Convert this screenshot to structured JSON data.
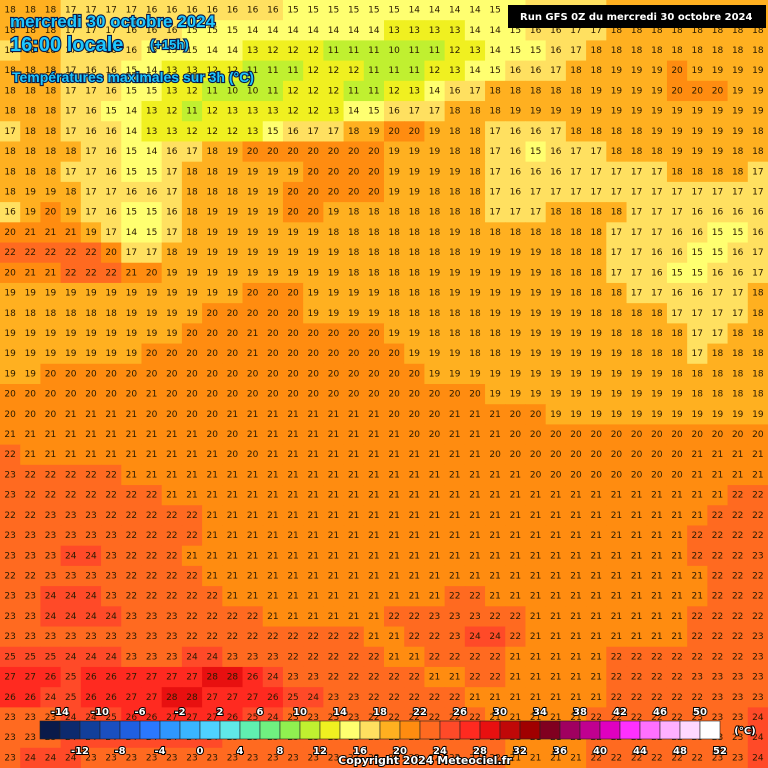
{
  "header": {
    "date": "mercredi 30 octobre 2024",
    "time": "16:00 locale",
    "offset": "(+15h)",
    "subtitle": "Températures maximales sur 3h (°C)",
    "run": "Run GFS 0Z du mercredi 30 octobre 2024"
  },
  "legend": {
    "unit": "(°C)",
    "ticks": [
      -14,
      -12,
      -10,
      -8,
      -6,
      -4,
      -2,
      0,
      2,
      4,
      6,
      8,
      10,
      12,
      14,
      16,
      18,
      20,
      22,
      24,
      26,
      28,
      30,
      32,
      34,
      36,
      38,
      40,
      42,
      44,
      46,
      48,
      50,
      52
    ],
    "colors": [
      "#0a1a4a",
      "#0d2a6e",
      "#123f9a",
      "#1a4fc0",
      "#1f5fe0",
      "#2a78ff",
      "#2f97ff",
      "#3ab5ff",
      "#4fd2ff",
      "#60e8e8",
      "#60f0b0",
      "#70f080",
      "#90f050",
      "#c0f030",
      "#f0f020",
      "#ffff70",
      "#ffe060",
      "#ffb020",
      "#ff8c10",
      "#ff6a20",
      "#ff4a28",
      "#ff2a20",
      "#e81010",
      "#c00808",
      "#a00000",
      "#800020",
      "#a00060",
      "#c00090",
      "#e000c0",
      "#ff30ff",
      "#ff70ff",
      "#ffb0ff",
      "#ffd8ff",
      "#ffffff"
    ]
  },
  "footer": {
    "copyright": "Copyright 2024 Meteociel.fr"
  },
  "grid": [
    [
      18,
      18,
      18,
      17,
      17,
      17,
      17,
      16,
      16,
      16,
      16,
      16,
      16,
      16,
      15,
      15,
      15,
      15,
      15,
      15,
      14,
      14,
      14,
      14,
      15,
      15,
      16,
      16,
      17,
      17,
      18,
      18,
      18,
      18,
      18,
      18,
      18,
      18
    ],
    [
      18,
      18,
      18,
      17,
      17,
      17,
      16,
      16,
      16,
      15,
      15,
      15,
      14,
      14,
      14,
      14,
      14,
      14,
      14,
      13,
      13,
      13,
      13,
      14,
      14,
      15,
      16,
      16,
      17,
      17,
      18,
      18,
      18,
      18,
      18,
      18,
      18,
      18
    ],
    [
      17,
      18,
      18,
      17,
      17,
      16,
      16,
      15,
      15,
      15,
      14,
      14,
      13,
      12,
      12,
      12,
      11,
      11,
      11,
      10,
      11,
      11,
      12,
      13,
      14,
      15,
      15,
      16,
      17,
      18,
      18,
      18,
      18,
      18,
      18,
      18,
      18,
      18
    ],
    [
      18,
      18,
      18,
      17,
      16,
      16,
      15,
      14,
      13,
      13,
      12,
      12,
      11,
      11,
      11,
      12,
      12,
      12,
      11,
      11,
      11,
      12,
      13,
      14,
      15,
      16,
      16,
      17,
      18,
      18,
      19,
      19,
      19,
      20,
      19,
      19,
      19,
      19
    ],
    [
      18,
      18,
      18,
      17,
      17,
      16,
      15,
      15,
      13,
      12,
      11,
      10,
      10,
      11,
      12,
      12,
      12,
      11,
      11,
      12,
      13,
      14,
      16,
      17,
      18,
      18,
      18,
      18,
      18,
      19,
      19,
      19,
      19,
      20,
      20,
      20,
      19,
      19
    ],
    [
      18,
      18,
      18,
      17,
      16,
      15,
      14,
      13,
      12,
      11,
      12,
      13,
      13,
      13,
      12,
      12,
      13,
      14,
      15,
      16,
      17,
      17,
      18,
      18,
      18,
      19,
      19,
      19,
      19,
      19,
      19,
      19,
      19,
      19,
      19,
      19,
      19,
      19
    ],
    [
      17,
      18,
      18,
      17,
      16,
      16,
      14,
      13,
      13,
      12,
      12,
      12,
      13,
      15,
      16,
      17,
      17,
      18,
      19,
      20,
      20,
      19,
      18,
      18,
      17,
      16,
      16,
      17,
      18,
      18,
      18,
      18,
      19,
      19,
      19,
      19,
      19,
      18
    ],
    [
      18,
      18,
      18,
      18,
      17,
      16,
      15,
      14,
      16,
      17,
      18,
      19,
      20,
      20,
      20,
      20,
      20,
      20,
      20,
      19,
      19,
      19,
      18,
      18,
      17,
      16,
      15,
      16,
      17,
      17,
      18,
      18,
      18,
      19,
      19,
      19,
      18,
      18
    ],
    [
      18,
      18,
      18,
      17,
      17,
      16,
      15,
      15,
      17,
      18,
      18,
      19,
      19,
      19,
      19,
      20,
      20,
      20,
      20,
      19,
      19,
      19,
      19,
      18,
      17,
      16,
      16,
      16,
      17,
      17,
      17,
      17,
      17,
      18,
      18,
      18,
      18,
      17
    ],
    [
      18,
      19,
      19,
      18,
      17,
      17,
      16,
      16,
      17,
      18,
      18,
      18,
      19,
      19,
      20,
      20,
      20,
      20,
      20,
      19,
      19,
      18,
      18,
      18,
      17,
      16,
      17,
      17,
      17,
      17,
      17,
      17,
      17,
      17,
      17,
      17,
      17,
      17
    ],
    [
      16,
      19,
      20,
      19,
      17,
      16,
      15,
      15,
      16,
      18,
      19,
      19,
      19,
      19,
      20,
      20,
      19,
      18,
      18,
      18,
      18,
      18,
      18,
      18,
      17,
      17,
      17,
      18,
      18,
      18,
      18,
      17,
      17,
      17,
      16,
      16,
      16,
      16
    ],
    [
      20,
      21,
      21,
      21,
      19,
      17,
      14,
      15,
      17,
      18,
      19,
      19,
      19,
      19,
      19,
      19,
      18,
      18,
      18,
      18,
      18,
      18,
      19,
      18,
      18,
      18,
      18,
      18,
      18,
      18,
      17,
      17,
      17,
      16,
      16,
      15,
      15,
      16
    ],
    [
      22,
      22,
      22,
      22,
      22,
      20,
      17,
      17,
      18,
      19,
      19,
      19,
      19,
      19,
      19,
      19,
      19,
      18,
      18,
      18,
      18,
      18,
      18,
      19,
      19,
      19,
      19,
      18,
      18,
      18,
      17,
      17,
      16,
      16,
      15,
      15,
      16,
      17
    ],
    [
      20,
      21,
      21,
      22,
      22,
      22,
      21,
      20,
      19,
      19,
      19,
      19,
      19,
      19,
      19,
      19,
      19,
      18,
      18,
      18,
      18,
      19,
      19,
      19,
      19,
      19,
      19,
      18,
      18,
      18,
      17,
      17,
      16,
      15,
      15,
      16,
      16,
      17
    ],
    [
      19,
      19,
      19,
      19,
      19,
      19,
      19,
      19,
      19,
      19,
      19,
      19,
      20,
      20,
      20,
      19,
      19,
      19,
      19,
      18,
      18,
      18,
      19,
      19,
      19,
      19,
      19,
      19,
      18,
      18,
      18,
      17,
      17,
      16,
      16,
      17,
      17,
      18
    ],
    [
      18,
      18,
      18,
      18,
      18,
      18,
      19,
      19,
      19,
      19,
      20,
      20,
      20,
      20,
      20,
      19,
      19,
      19,
      19,
      18,
      18,
      18,
      18,
      18,
      19,
      19,
      19,
      19,
      19,
      18,
      18,
      18,
      18,
      17,
      17,
      17,
      17,
      18
    ],
    [
      19,
      19,
      19,
      19,
      19,
      19,
      19,
      19,
      19,
      20,
      20,
      20,
      21,
      20,
      20,
      20,
      20,
      20,
      20,
      19,
      19,
      18,
      18,
      18,
      18,
      19,
      19,
      19,
      19,
      19,
      18,
      18,
      18,
      18,
      17,
      17,
      18,
      18
    ],
    [
      19,
      19,
      19,
      19,
      19,
      19,
      19,
      20,
      20,
      20,
      20,
      20,
      21,
      20,
      20,
      20,
      20,
      20,
      20,
      20,
      19,
      19,
      19,
      18,
      18,
      19,
      19,
      19,
      19,
      19,
      19,
      18,
      18,
      18,
      17,
      18,
      18,
      18
    ],
    [
      19,
      19,
      20,
      20,
      20,
      20,
      20,
      20,
      20,
      20,
      20,
      20,
      20,
      20,
      20,
      20,
      20,
      20,
      20,
      20,
      20,
      19,
      19,
      19,
      19,
      19,
      19,
      19,
      19,
      19,
      19,
      19,
      19,
      18,
      18,
      18,
      18,
      18
    ],
    [
      20,
      20,
      20,
      20,
      20,
      20,
      20,
      21,
      20,
      20,
      20,
      20,
      20,
      20,
      20,
      20,
      20,
      20,
      20,
      20,
      20,
      20,
      20,
      20,
      19,
      19,
      19,
      19,
      19,
      19,
      19,
      19,
      19,
      19,
      18,
      18,
      18,
      18
    ],
    [
      20,
      20,
      20,
      21,
      21,
      21,
      21,
      20,
      20,
      20,
      20,
      21,
      21,
      21,
      21,
      21,
      21,
      21,
      21,
      20,
      20,
      20,
      21,
      21,
      21,
      20,
      20,
      19,
      19,
      19,
      19,
      19,
      19,
      19,
      19,
      19,
      19,
      19
    ],
    [
      21,
      21,
      21,
      21,
      21,
      21,
      21,
      21,
      21,
      21,
      20,
      20,
      21,
      21,
      21,
      21,
      21,
      21,
      21,
      21,
      20,
      20,
      21,
      21,
      21,
      20,
      20,
      20,
      20,
      20,
      20,
      20,
      20,
      20,
      20,
      20,
      20,
      20
    ],
    [
      22,
      21,
      21,
      21,
      21,
      21,
      21,
      21,
      21,
      21,
      21,
      20,
      20,
      21,
      21,
      21,
      21,
      21,
      21,
      21,
      21,
      21,
      21,
      21,
      20,
      20,
      20,
      20,
      20,
      20,
      20,
      20,
      20,
      20,
      21,
      21,
      21,
      21
    ],
    [
      23,
      22,
      22,
      22,
      22,
      22,
      21,
      21,
      21,
      21,
      21,
      21,
      21,
      21,
      21,
      21,
      21,
      21,
      21,
      21,
      21,
      21,
      21,
      21,
      21,
      21,
      20,
      20,
      20,
      20,
      20,
      20,
      20,
      20,
      21,
      21,
      21,
      21
    ],
    [
      23,
      22,
      22,
      22,
      22,
      22,
      22,
      22,
      21,
      21,
      21,
      21,
      21,
      21,
      21,
      21,
      21,
      21,
      21,
      21,
      21,
      21,
      21,
      21,
      21,
      21,
      21,
      21,
      21,
      21,
      21,
      21,
      21,
      21,
      21,
      21,
      22,
      22
    ],
    [
      22,
      22,
      23,
      23,
      23,
      22,
      22,
      22,
      22,
      22,
      21,
      21,
      21,
      21,
      21,
      21,
      21,
      21,
      21,
      21,
      21,
      21,
      21,
      21,
      21,
      21,
      21,
      21,
      21,
      21,
      21,
      21,
      21,
      21,
      21,
      22,
      22,
      22
    ],
    [
      23,
      23,
      23,
      23,
      23,
      23,
      22,
      22,
      22,
      22,
      21,
      21,
      21,
      21,
      21,
      21,
      21,
      21,
      21,
      21,
      21,
      21,
      21,
      21,
      21,
      21,
      21,
      21,
      21,
      21,
      21,
      21,
      21,
      21,
      22,
      22,
      22,
      22
    ],
    [
      23,
      23,
      23,
      24,
      24,
      23,
      22,
      22,
      22,
      21,
      21,
      21,
      21,
      21,
      21,
      21,
      21,
      21,
      21,
      21,
      21,
      21,
      21,
      21,
      21,
      21,
      21,
      21,
      21,
      21,
      21,
      21,
      21,
      21,
      22,
      22,
      22,
      23
    ],
    [
      22,
      22,
      23,
      23,
      23,
      23,
      22,
      22,
      22,
      22,
      21,
      21,
      21,
      21,
      21,
      21,
      21,
      21,
      21,
      21,
      21,
      21,
      21,
      21,
      21,
      21,
      21,
      21,
      21,
      21,
      21,
      21,
      21,
      21,
      21,
      22,
      22,
      22
    ],
    [
      23,
      23,
      24,
      24,
      24,
      23,
      22,
      22,
      22,
      22,
      22,
      21,
      21,
      21,
      21,
      21,
      21,
      21,
      21,
      21,
      21,
      21,
      22,
      22,
      21,
      21,
      21,
      21,
      21,
      21,
      21,
      21,
      21,
      21,
      21,
      22,
      22,
      22
    ],
    [
      23,
      23,
      24,
      24,
      24,
      24,
      23,
      23,
      23,
      22,
      22,
      22,
      22,
      21,
      21,
      21,
      21,
      21,
      21,
      22,
      22,
      23,
      23,
      23,
      22,
      22,
      21,
      21,
      21,
      21,
      21,
      21,
      21,
      21,
      22,
      22,
      22,
      22
    ],
    [
      23,
      23,
      23,
      23,
      23,
      23,
      23,
      23,
      23,
      22,
      22,
      22,
      22,
      22,
      22,
      22,
      22,
      22,
      21,
      21,
      22,
      22,
      23,
      24,
      24,
      22,
      21,
      21,
      21,
      21,
      21,
      21,
      21,
      21,
      22,
      22,
      22,
      23
    ],
    [
      25,
      25,
      25,
      24,
      24,
      24,
      23,
      23,
      23,
      24,
      24,
      23,
      23,
      23,
      22,
      22,
      22,
      22,
      22,
      21,
      21,
      22,
      22,
      22,
      22,
      21,
      21,
      21,
      21,
      21,
      22,
      22,
      22,
      22,
      22,
      22,
      22,
      23
    ],
    [
      27,
      27,
      26,
      25,
      26,
      26,
      27,
      27,
      27,
      27,
      28,
      28,
      26,
      24,
      23,
      23,
      22,
      22,
      22,
      22,
      22,
      21,
      21,
      22,
      22,
      21,
      21,
      21,
      21,
      21,
      22,
      22,
      22,
      22,
      23,
      23,
      23,
      23
    ],
    [
      26,
      26,
      24,
      25,
      26,
      26,
      27,
      27,
      28,
      28,
      27,
      27,
      27,
      26,
      25,
      24,
      23,
      23,
      22,
      22,
      22,
      22,
      22,
      21,
      21,
      21,
      21,
      21,
      21,
      21,
      22,
      22,
      22,
      22,
      22,
      23,
      23,
      23
    ],
    [
      23,
      23,
      23,
      24,
      24,
      25,
      26,
      26,
      27,
      27,
      27,
      26,
      25,
      24,
      23,
      23,
      23,
      23,
      22,
      22,
      22,
      22,
      22,
      22,
      21,
      21,
      21,
      21,
      21,
      22,
      22,
      22,
      22,
      22,
      23,
      23,
      23,
      24
    ],
    [
      23,
      23,
      23,
      24,
      24,
      24,
      24,
      24,
      24,
      24,
      24,
      23,
      23,
      23,
      23,
      23,
      23,
      23,
      22,
      22,
      22,
      22,
      22,
      22,
      22,
      21,
      21,
      21,
      21,
      22,
      22,
      22,
      22,
      22,
      23,
      23,
      23,
      24
    ],
    [
      23,
      24,
      24,
      24,
      23,
      23,
      23,
      23,
      23,
      23,
      23,
      23,
      23,
      23,
      23,
      23,
      23,
      23,
      23,
      22,
      22,
      22,
      22,
      22,
      22,
      21,
      21,
      21,
      21,
      22,
      22,
      22,
      22,
      22,
      22,
      23,
      23,
      24
    ]
  ]
}
